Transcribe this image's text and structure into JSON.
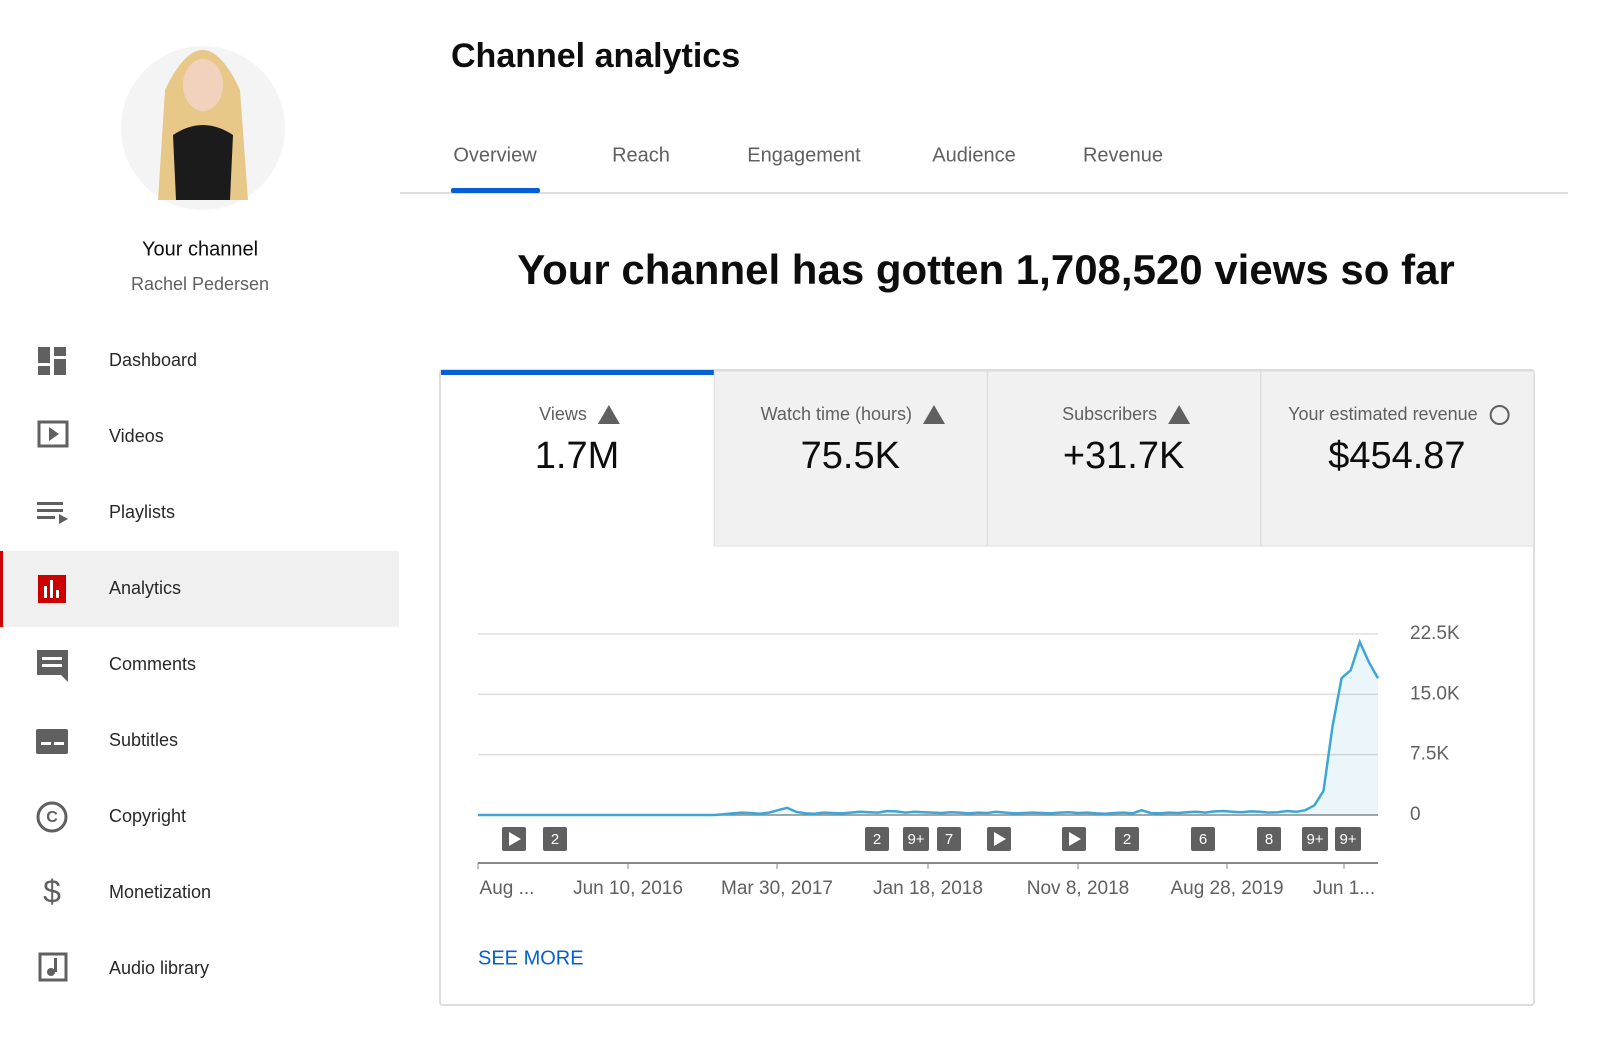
{
  "sidebar": {
    "channel_label": "Your channel",
    "channel_name": "Rachel Pedersen",
    "nav": [
      "Dashboard",
      "Videos",
      "Playlists",
      "Analytics",
      "Comments",
      "Subtitles",
      "Copyright",
      "Monetization",
      "Audio library"
    ]
  },
  "header": {
    "title": "Channel analytics",
    "tabs": [
      "Overview",
      "Reach",
      "Engagement",
      "Audience",
      "Revenue"
    ]
  },
  "headline": "Your channel has gotten 1,708,520 views so far",
  "metrics": [
    {
      "label": "Views",
      "value": "1.7M"
    },
    {
      "label": "Watch time (hours)",
      "value": "75.5K"
    },
    {
      "label": "Subscribers",
      "value": "+31.7K"
    },
    {
      "label": "Your estimated revenue",
      "value": "$454.87"
    }
  ],
  "chart": {
    "type": "line",
    "x_labels": [
      "Aug ...",
      "Jun 10, 2016",
      "Mar 30, 2017",
      "Jan 18, 2018",
      "Nov 8, 2018",
      "Aug 28, 2019",
      "Jun 1..."
    ],
    "ylim": [
      0,
      22500
    ],
    "yticks": [
      0,
      {
        "value": 7500,
        "label": "7.5K"
      },
      {
        "value": 15000,
        "label": "15.0K"
      },
      {
        "value": 22500,
        "label": "22.5K"
      }
    ],
    "series": [
      {
        "name": "Views",
        "color": "#3ea6d6",
        "values": [
          0,
          0,
          0,
          0,
          0,
          0,
          0,
          0,
          0,
          0,
          0,
          0,
          0,
          0,
          0,
          0,
          0,
          0,
          0,
          0,
          0,
          0,
          0,
          0,
          0,
          0,
          0,
          100,
          200,
          300,
          250,
          150,
          300,
          600,
          900,
          400,
          200,
          150,
          300,
          250,
          200,
          300,
          400,
          350,
          300,
          500,
          450,
          300,
          400,
          350,
          300,
          250,
          350,
          300,
          200,
          300,
          250,
          400,
          300,
          200,
          250,
          300,
          250,
          200,
          300,
          350,
          250,
          300,
          200,
          150,
          250,
          300,
          200,
          600,
          250,
          200,
          300,
          250,
          350,
          400,
          300,
          450,
          500,
          400,
          350,
          450,
          400,
          300,
          350,
          500,
          400,
          600,
          1200,
          3000,
          11000,
          17000,
          18000,
          21500,
          19000,
          17000
        ]
      }
    ],
    "markers": [
      null,
      "2",
      "2",
      "9+",
      "7",
      null,
      null,
      "2",
      "6",
      "8",
      "9+",
      "9+"
    ],
    "link": "SEE MORE"
  }
}
